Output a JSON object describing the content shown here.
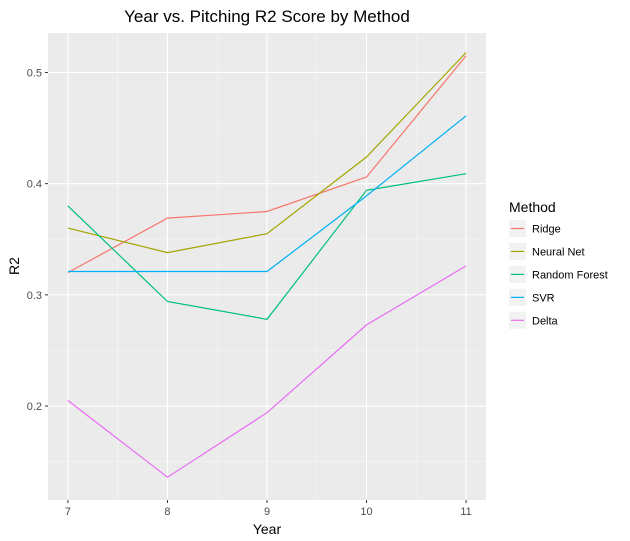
{
  "chart_data": {
    "type": "line",
    "title": "Year vs. Pitching R2 Score by Method",
    "xlabel": "Year",
    "ylabel": "R2",
    "x": [
      7,
      8,
      9,
      10,
      11
    ],
    "xlim": [
      6.8,
      11.2
    ],
    "ylim": [
      0.1155,
      0.5355
    ],
    "xticks": [
      "7",
      "8",
      "9",
      "10",
      "11"
    ],
    "yticks": [
      {
        "value": 0.2,
        "label": "0.2"
      },
      {
        "value": 0.3,
        "label": "0.3"
      },
      {
        "value": 0.4,
        "label": "0.4"
      },
      {
        "value": 0.5,
        "label": "0.5"
      }
    ],
    "grid": true,
    "background": "#ebebeb",
    "legend": {
      "title": "Method",
      "position": "right"
    },
    "series": [
      {
        "name": "Ridge",
        "color": "#F8766D",
        "values": [
          0.32,
          0.369,
          0.375,
          0.406,
          0.515
        ]
      },
      {
        "name": "Neural Net",
        "color": "#A3A500",
        "values": [
          0.36,
          0.338,
          0.355,
          0.424,
          0.518
        ]
      },
      {
        "name": "Random Forest",
        "color": "#00BF7D",
        "values": [
          0.38,
          0.294,
          0.278,
          0.394,
          0.409
        ]
      },
      {
        "name": "SVR",
        "color": "#00B0F6",
        "values": [
          0.321,
          0.321,
          0.321,
          0.389,
          0.461
        ]
      },
      {
        "name": "Delta",
        "color": "#E76BF3",
        "values": [
          0.205,
          0.136,
          0.194,
          0.273,
          0.326
        ]
      }
    ]
  }
}
